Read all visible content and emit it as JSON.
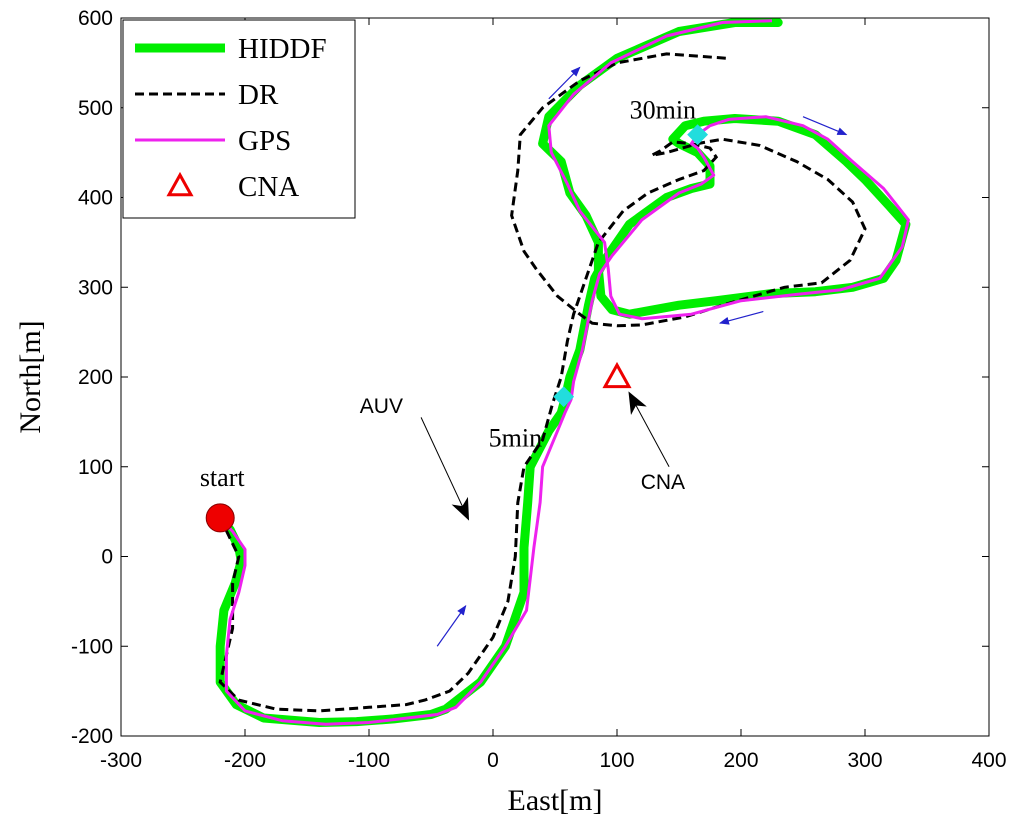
{
  "chart_data": {
    "type": "line",
    "xlabel": "East[m]",
    "ylabel": "North[m]",
    "xlim": [
      -300,
      400
    ],
    "ylim": [
      -200,
      600
    ],
    "xticks": [
      -300,
      -200,
      -100,
      0,
      100,
      200,
      300,
      400
    ],
    "yticks": [
      -200,
      -100,
      0,
      100,
      200,
      300,
      400,
      500,
      600
    ],
    "grid": false,
    "legend_position": "top-left",
    "series": [
      {
        "name": "HIDDF",
        "color": "#00ee00",
        "style": "solid-thick",
        "points": [
          [
            -220,
            43
          ],
          [
            -212,
            30
          ],
          [
            -205,
            10
          ],
          [
            -203,
            -5
          ],
          [
            -208,
            -30
          ],
          [
            -217,
            -60
          ],
          [
            -220,
            -100
          ],
          [
            -220,
            -140
          ],
          [
            -207,
            -165
          ],
          [
            -185,
            -180
          ],
          [
            -140,
            -185
          ],
          [
            -110,
            -184
          ],
          [
            -80,
            -181
          ],
          [
            -50,
            -176
          ],
          [
            -38,
            -170
          ],
          [
            -10,
            -140
          ],
          [
            10,
            -100
          ],
          [
            25,
            -40
          ],
          [
            25,
            10
          ],
          [
            28,
            60
          ],
          [
            30,
            100
          ],
          [
            45,
            140
          ],
          [
            55,
            160
          ],
          [
            58,
            175
          ],
          [
            62,
            200
          ],
          [
            70,
            230
          ],
          [
            77,
            280
          ],
          [
            82,
            310
          ],
          [
            90,
            330
          ],
          [
            110,
            370
          ],
          [
            140,
            400
          ],
          [
            160,
            410
          ],
          [
            175,
            415
          ],
          [
            175,
            435
          ],
          [
            165,
            450
          ],
          [
            150,
            460
          ],
          [
            145,
            465
          ],
          [
            155,
            480
          ],
          [
            170,
            485
          ],
          [
            195,
            488
          ],
          [
            230,
            485
          ],
          [
            260,
            470
          ],
          [
            285,
            440
          ],
          [
            300,
            420
          ],
          [
            320,
            390
          ],
          [
            333,
            370
          ],
          [
            325,
            330
          ],
          [
            315,
            310
          ],
          [
            290,
            300
          ],
          [
            260,
            295
          ],
          [
            225,
            293
          ],
          [
            180,
            285
          ],
          [
            150,
            280
          ],
          [
            130,
            275
          ],
          [
            110,
            270
          ],
          [
            96,
            275
          ],
          [
            87,
            290
          ],
          [
            85,
            320
          ],
          [
            85,
            350
          ],
          [
            75,
            380
          ],
          [
            62,
            405
          ],
          [
            55,
            440
          ],
          [
            40,
            460
          ],
          [
            45,
            490
          ],
          [
            70,
            525
          ],
          [
            100,
            555
          ],
          [
            150,
            585
          ],
          [
            195,
            595
          ],
          [
            230,
            595
          ]
        ]
      },
      {
        "name": "DR",
        "color": "#000000",
        "style": "dashed",
        "points": [
          [
            -220,
            43
          ],
          [
            -205,
            0
          ],
          [
            -210,
            -30
          ],
          [
            -210,
            -80
          ],
          [
            -220,
            -140
          ],
          [
            -205,
            -160
          ],
          [
            -175,
            -170
          ],
          [
            -140,
            -172
          ],
          [
            -100,
            -168
          ],
          [
            -70,
            -165
          ],
          [
            -55,
            -160
          ],
          [
            -35,
            -150
          ],
          [
            -20,
            -130
          ],
          [
            0,
            -90
          ],
          [
            12,
            -50
          ],
          [
            18,
            0
          ],
          [
            20,
            60
          ],
          [
            25,
            100
          ],
          [
            40,
            130
          ],
          [
            48,
            170
          ],
          [
            55,
            200
          ],
          [
            60,
            240
          ],
          [
            65,
            270
          ],
          [
            75,
            310
          ],
          [
            85,
            350
          ],
          [
            105,
            385
          ],
          [
            125,
            405
          ],
          [
            150,
            420
          ],
          [
            170,
            430
          ],
          [
            180,
            445
          ],
          [
            175,
            455
          ],
          [
            160,
            460
          ],
          [
            145,
            462
          ],
          [
            135,
            452
          ],
          [
            128,
            447
          ],
          [
            140,
            450
          ],
          [
            165,
            460
          ],
          [
            185,
            465
          ],
          [
            215,
            458
          ],
          [
            245,
            440
          ],
          [
            270,
            420
          ],
          [
            290,
            395
          ],
          [
            300,
            365
          ],
          [
            288,
            330
          ],
          [
            265,
            305
          ],
          [
            235,
            300
          ],
          [
            210,
            290
          ],
          [
            185,
            280
          ],
          [
            155,
            267
          ],
          [
            120,
            258
          ],
          [
            100,
            257
          ],
          [
            80,
            260
          ],
          [
            70,
            270
          ],
          [
            52,
            290
          ],
          [
            35,
            320
          ],
          [
            25,
            340
          ],
          [
            15,
            380
          ],
          [
            20,
            430
          ],
          [
            22,
            470
          ],
          [
            40,
            500
          ],
          [
            70,
            530
          ],
          [
            100,
            550
          ],
          [
            140,
            560
          ],
          [
            190,
            555
          ]
        ]
      },
      {
        "name": "GPS",
        "color": "#ee22ee",
        "style": "solid-thin",
        "points": [
          [
            -220,
            43
          ],
          [
            -210,
            28
          ],
          [
            -200,
            8
          ],
          [
            -200,
            -10
          ],
          [
            -205,
            -40
          ],
          [
            -212,
            -70
          ],
          [
            -215,
            -110
          ],
          [
            -215,
            -150
          ],
          [
            -200,
            -172
          ],
          [
            -170,
            -183
          ],
          [
            -135,
            -187
          ],
          [
            -100,
            -185
          ],
          [
            -75,
            -181
          ],
          [
            -45,
            -176
          ],
          [
            -30,
            -168
          ],
          [
            -10,
            -140
          ],
          [
            10,
            -100
          ],
          [
            27,
            -60
          ],
          [
            33,
            10
          ],
          [
            38,
            60
          ],
          [
            40,
            100
          ],
          [
            52,
            140
          ],
          [
            58,
            160
          ],
          [
            63,
            175
          ],
          [
            65,
            195
          ],
          [
            72,
            230
          ],
          [
            80,
            285
          ],
          [
            86,
            315
          ],
          [
            96,
            335
          ],
          [
            120,
            375
          ],
          [
            150,
            405
          ],
          [
            168,
            415
          ],
          [
            178,
            425
          ],
          [
            170,
            445
          ],
          [
            165,
            455
          ],
          [
            160,
            460
          ],
          [
            165,
            470
          ],
          [
            175,
            480
          ],
          [
            190,
            487
          ],
          [
            220,
            490
          ],
          [
            250,
            480
          ],
          [
            270,
            465
          ],
          [
            290,
            440
          ],
          [
            315,
            410
          ],
          [
            335,
            375
          ],
          [
            330,
            345
          ],
          [
            312,
            310
          ],
          [
            280,
            297
          ],
          [
            245,
            292
          ],
          [
            200,
            285
          ],
          [
            160,
            270
          ],
          [
            120,
            265
          ],
          [
            102,
            270
          ],
          [
            95,
            290
          ],
          [
            93,
            320
          ],
          [
            90,
            350
          ],
          [
            70,
            385
          ],
          [
            60,
            415
          ],
          [
            47,
            450
          ],
          [
            45,
            480
          ],
          [
            65,
            515
          ],
          [
            95,
            550
          ],
          [
            140,
            580
          ],
          [
            185,
            595
          ],
          [
            225,
            597
          ]
        ]
      }
    ],
    "markers": [
      {
        "name": "start",
        "label": "start",
        "x": -220,
        "y": 43,
        "color": "#ee0000",
        "shape": "circle"
      },
      {
        "name": "CNA",
        "x": 100,
        "y": 200,
        "color": "#ee0000",
        "shape": "triangle-hollow"
      },
      {
        "name": "5min",
        "label": "5min",
        "x": 57,
        "y": 178,
        "color": "#22dddd",
        "shape": "diamond"
      },
      {
        "name": "30min",
        "label": "30min",
        "x": 165,
        "y": 470,
        "color": "#22dddd",
        "shape": "diamond"
      }
    ],
    "annotations": [
      {
        "label": "AUV",
        "text_at": [
          -90,
          160
        ],
        "arrow_from": [
          -58,
          155
        ],
        "arrow_to": [
          -20,
          42
        ]
      },
      {
        "label": "CNA",
        "text_at": [
          137,
          75
        ],
        "arrow_from": [
          142,
          100
        ],
        "arrow_to": [
          110,
          182
        ]
      }
    ],
    "direction_arrows": [
      {
        "from": [
          -45,
          -100
        ],
        "to": [
          -22,
          -55
        ],
        "color": "#2222cc"
      },
      {
        "from": [
          45,
          510
        ],
        "to": [
          70,
          545
        ],
        "color": "#2222cc"
      },
      {
        "from": [
          250,
          490
        ],
        "to": [
          285,
          470
        ],
        "color": "#2222cc"
      },
      {
        "from": [
          218,
          273
        ],
        "to": [
          183,
          260
        ],
        "color": "#2222cc"
      }
    ],
    "legend": [
      {
        "label": "HIDDF",
        "color": "#00ee00",
        "style": "solid-thick"
      },
      {
        "label": "DR",
        "color": "#000000",
        "style": "dashed"
      },
      {
        "label": "GPS",
        "color": "#ee22ee",
        "style": "solid-thin"
      },
      {
        "label": "CNA",
        "color": "#ee0000",
        "style": "triangle-hollow"
      }
    ]
  }
}
